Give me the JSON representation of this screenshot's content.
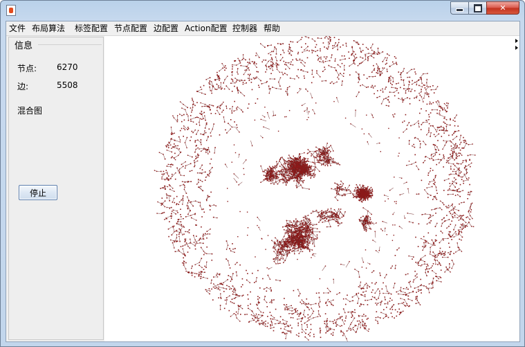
{
  "window": {
    "title": "",
    "close_label": "✕"
  },
  "menubar": {
    "items": [
      {
        "label": "文件"
      },
      {
        "label": "布局算法"
      },
      {
        "label": "标签配置"
      },
      {
        "label": "节点配置"
      },
      {
        "label": "边配置"
      },
      {
        "label": "Action配置"
      },
      {
        "label": "控制器"
      },
      {
        "label": "帮助"
      }
    ]
  },
  "info_panel": {
    "title": "信息",
    "node_label": "节点:",
    "node_count": "6270",
    "edge_label": "边:",
    "edge_count": "5508",
    "graph_type": "混合图",
    "stop_button_label": "停止"
  },
  "graph": {
    "node_color": "#8b1a1a",
    "edge_color": "#6a2020",
    "background": "#ffffff"
  }
}
